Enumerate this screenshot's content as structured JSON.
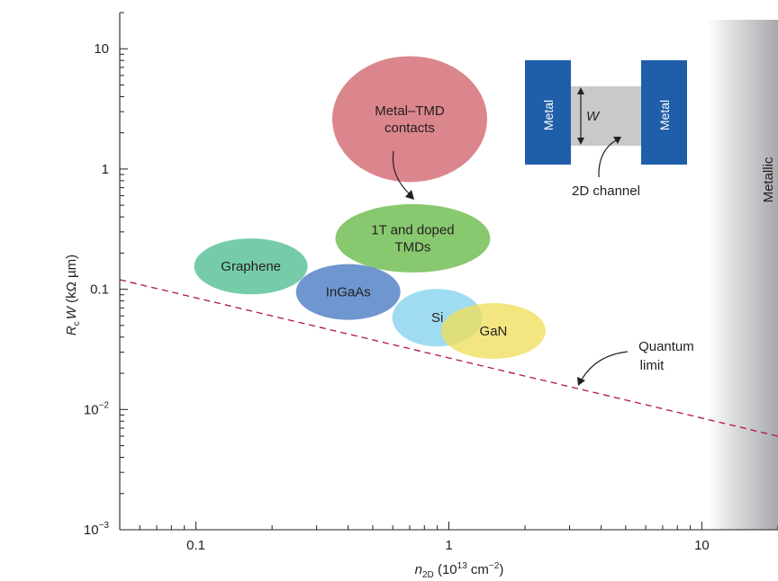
{
  "chart_data": {
    "type": "scatter",
    "title": "",
    "xlabel": {
      "base": "n",
      "sub": "2D",
      "rest": " (10",
      "sup": "13",
      "rest2": " cm",
      "sup2": "−2",
      "rest3": ")"
    },
    "ylabel": {
      "base": "R",
      "sub": "c",
      "base2": "W",
      "rest": " (kΩ µm)"
    },
    "x_scale": "log",
    "y_scale": "log",
    "xlim": [
      0.05,
      20
    ],
    "ylim": [
      0.001,
      20
    ],
    "x_ticks": [
      {
        "value": 0.1,
        "label": "0.1"
      },
      {
        "value": 1,
        "label": "1"
      },
      {
        "value": 10,
        "label": "10"
      }
    ],
    "y_ticks": [
      {
        "value": 0.001,
        "base": "10",
        "sup": "−3"
      },
      {
        "value": 0.01,
        "base": "10",
        "sup": "−2"
      },
      {
        "value": 0.1,
        "base": "0.1",
        "sup": ""
      },
      {
        "value": 1,
        "base": "1",
        "sup": ""
      },
      {
        "value": 10,
        "base": "10",
        "sup": ""
      }
    ],
    "grid": false,
    "regions": [
      {
        "label": "Graphene",
        "x": 0.165,
        "y": 0.155,
        "color": "#5ec39a",
        "opacity": 0.85,
        "lines": [
          "Graphene"
        ]
      },
      {
        "label": "1T and doped TMDs",
        "x": 0.72,
        "y": 0.265,
        "color": "#7bc25e",
        "opacity": 0.9,
        "lines": [
          "1T and doped",
          "TMDs"
        ]
      },
      {
        "label": "InGaAs",
        "x": 0.4,
        "y": 0.095,
        "color": "#5b88c8",
        "opacity": 0.88,
        "lines": [
          "InGaAs"
        ]
      },
      {
        "label": "Si",
        "x": 0.9,
        "y": 0.058,
        "color": "#8fd6ee",
        "opacity": 0.85,
        "lines": [
          "Si"
        ]
      },
      {
        "label": "GaN",
        "x": 1.5,
        "y": 0.045,
        "color": "#f0df5c",
        "opacity": 0.78,
        "lines": [
          "GaN"
        ]
      },
      {
        "label": "Metal–TMD contacts",
        "x": 0.7,
        "y": 2.6,
        "color": "#d97f86",
        "opacity": 0.95,
        "lines": [
          "Metal–TMD",
          "contacts"
        ]
      }
    ],
    "quantum_limit_line": {
      "label": "Quantum limit",
      "label_lines": [
        "Quantum",
        "limit"
      ],
      "x": [
        0.05,
        20
      ],
      "y": [
        0.12,
        0.006
      ],
      "color": "#b0134b"
    },
    "metallic_region": {
      "label": "Metallic",
      "x_start": 10.5,
      "x_end": 20
    },
    "inset": {
      "metal_left": "Metal",
      "metal_right": "Metal",
      "width_label": "W",
      "channel_label": "2D channel"
    }
  }
}
